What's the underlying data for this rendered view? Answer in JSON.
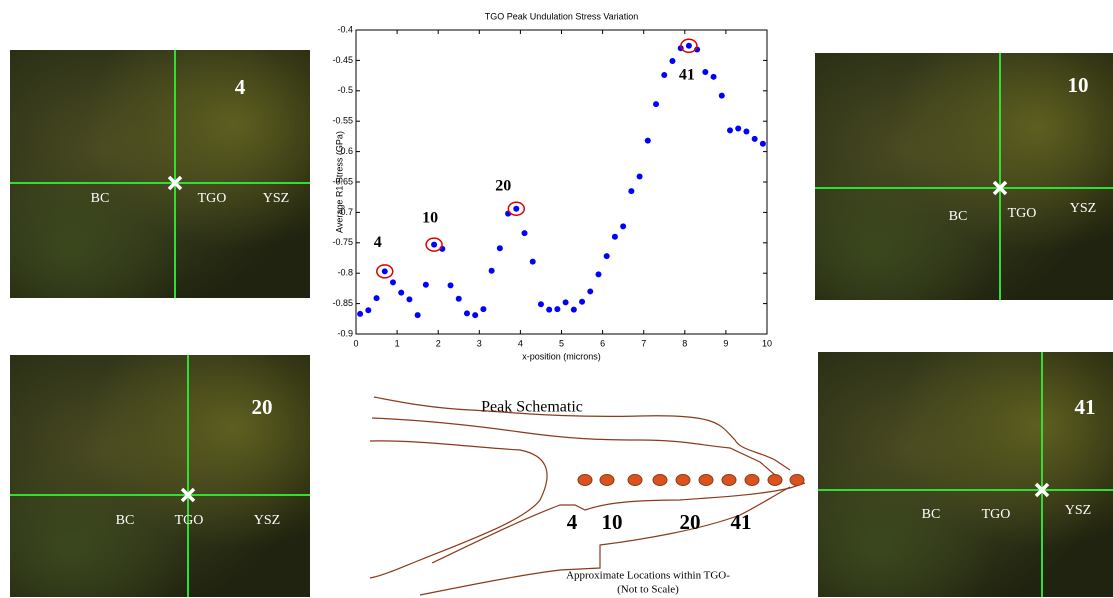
{
  "chart_data": {
    "type": "scatter",
    "title": "TGO Peak Undulation Stress Variation",
    "x_label": "x-position (microns)",
    "y_label": "Average R1 Stress (GPa)",
    "series": [
      {
        "color": "#0000ff",
        "x": [
          0.1,
          0.3,
          0.5,
          0.7,
          0.9,
          1.1,
          1.3,
          1.5,
          1.7,
          1.9,
          2.1,
          2.3,
          2.5,
          2.7,
          2.9,
          3.1,
          3.3,
          3.5,
          3.7,
          3.9,
          4.1,
          4.3,
          4.5,
          4.7,
          4.9,
          5.1,
          5.3,
          5.5,
          5.7,
          5.9,
          6.1,
          6.3,
          6.5,
          6.7,
          6.9,
          7.1,
          7.3,
          7.5,
          7.7,
          7.9,
          8.1,
          8.3,
          8.5,
          8.7,
          8.9,
          9.1,
          9.3,
          9.5,
          9.7,
          9.9
        ],
        "values": [
          -0.867,
          -0.861,
          -0.841,
          -0.797,
          -0.815,
          -0.832,
          -0.843,
          -0.869,
          -0.819,
          -0.753,
          -0.76,
          -0.82,
          -0.842,
          -0.866,
          -0.869,
          -0.859,
          -0.796,
          -0.759,
          -0.702,
          -0.694,
          -0.734,
          -0.781,
          -0.851,
          -0.86,
          -0.859,
          -0.848,
          -0.86,
          -0.847,
          -0.83,
          -0.802,
          -0.772,
          -0.74,
          -0.723,
          -0.665,
          -0.641,
          -0.582,
          -0.522,
          -0.474,
          -0.451,
          -0.43,
          -0.426,
          -0.432,
          -0.469,
          -0.477,
          -0.508,
          -0.565,
          -0.562,
          -0.567,
          -0.579,
          -0.587
        ]
      }
    ],
    "annotations": [
      {
        "text": "4",
        "x": 0.7,
        "y": -0.797,
        "color": "#e00000"
      },
      {
        "text": "10",
        "x": 1.9,
        "y": -0.753,
        "color": "#e00000"
      },
      {
        "text": "20",
        "x": 3.9,
        "y": -0.694,
        "color": "#e00000"
      },
      {
        "text": "41",
        "x": 8.1,
        "y": -0.426,
        "color": "#e00000"
      }
    ],
    "xlim": [
      0,
      10
    ],
    "xticks": [
      0,
      1,
      2,
      3,
      4,
      5,
      6,
      7,
      8,
      9,
      10
    ],
    "ylim": [
      -0.9,
      -0.4
    ],
    "yticks": [
      -0.9,
      -0.85,
      -0.8,
      -0.75,
      -0.7,
      -0.65,
      -0.6,
      -0.55,
      -0.5,
      -0.45,
      -0.4
    ]
  },
  "panels": [
    {
      "number": "4",
      "labels": [
        "BC",
        "TGO",
        "YSZ"
      ]
    },
    {
      "number": "10",
      "labels": [
        "BC",
        "TGO",
        "YSZ"
      ]
    },
    {
      "number": "20",
      "labels": [
        "BC",
        "TGO",
        "YSZ"
      ]
    },
    {
      "number": "41",
      "labels": [
        "BC",
        "TGO",
        "YSZ"
      ]
    }
  ],
  "schematic": {
    "title": "Peak Schematic",
    "markers": [
      "4",
      "10",
      "20",
      "41"
    ],
    "caption": [
      "Approximate Locations within TGO-",
      "(Not to Scale)"
    ]
  }
}
